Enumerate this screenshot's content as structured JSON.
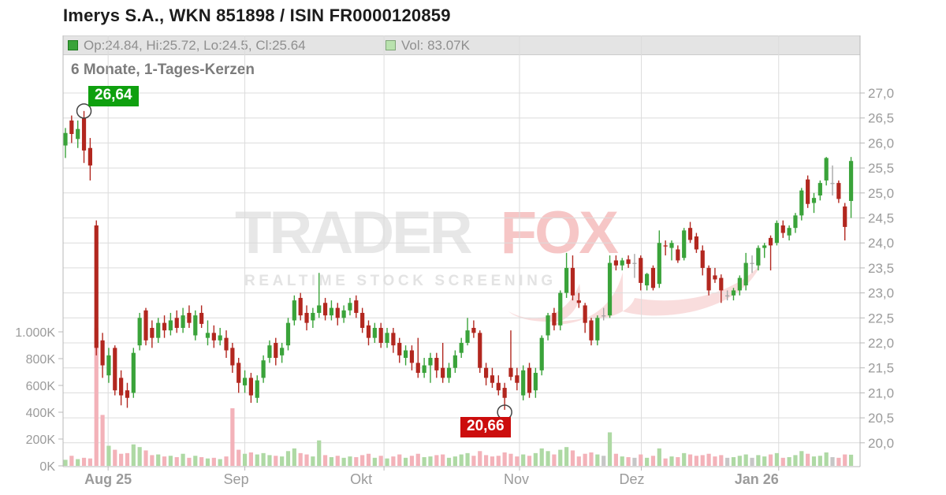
{
  "header": {
    "title": "Imerys S.A., WKN 851898 / ISIN FR0000120859"
  },
  "legend": {
    "ohlc_label": "Op:24.84, Hi:25.72, Lo:24.5, Cl:25.64",
    "vol_label": "Vol: 83.07K"
  },
  "subtitle": "6 Monate, 1-Tages-Kerzen",
  "annotations": {
    "high_label": "26,64",
    "low_label": "20,66"
  },
  "watermark": {
    "word1": "TRADER",
    "word2": "FOX",
    "tagline": "REALTIME STOCK SCREENING"
  },
  "colors": {
    "up": "#3aa33a",
    "down": "#b2271f",
    "neutral": "#a6a6a6",
    "vol_up": "#aed9a4",
    "vol_down": "#f3b2b9",
    "vol_neutral": "#c6c6c6",
    "grid": "#dcdcdc",
    "axis_line": "#b8b8b8",
    "axis_text": "#9b9b9b",
    "marker_ring": "#444444"
  },
  "chart_data": {
    "type": "candlestick",
    "title": "Imerys S.A., WKN 851898 / ISIN FR0000120859",
    "period": "6 Monate, 1-Tages-Kerzen",
    "price_axis": {
      "min": 20.0,
      "max": 27.0,
      "step": 0.5,
      "side": "right",
      "decimal": "comma"
    },
    "volume_axis": {
      "side": "left",
      "unit": "K",
      "ticks": [
        [
          1000,
          "1.000K"
        ],
        [
          800,
          "800K"
        ],
        [
          600,
          "600K"
        ],
        [
          400,
          "400K"
        ],
        [
          200,
          "200K"
        ],
        [
          0,
          "0K"
        ]
      ]
    },
    "months": [
      {
        "label": "Aug 25",
        "index": 6.9,
        "bold": true,
        "label_dx": 0
      },
      {
        "label": "Sep",
        "index": 29.0,
        "bold": false,
        "label_dx": -11
      },
      {
        "label": "Okt",
        "index": 51.5,
        "bold": false,
        "label_dx": -29
      },
      {
        "label": "Nov",
        "index": 73.4,
        "bold": false,
        "label_dx": -4
      },
      {
        "label": "Dez",
        "index": 93.1,
        "bold": false,
        "label_dx": -12
      },
      {
        "label": "Jan 26",
        "index": 115.3,
        "bold": true,
        "label_dx": -28
      }
    ],
    "marked_high": {
      "index": 3,
      "value": 26.64,
      "label": "26,64"
    },
    "marked_low": {
      "index": 71,
      "value": 20.66,
      "label": "20,66"
    },
    "last_candle": {
      "open": 24.84,
      "high": 25.72,
      "low": 24.5,
      "close": 25.64,
      "volume_k": 83.07
    },
    "candles_format": [
      "open",
      "high",
      "low",
      "close",
      "volume_k"
    ],
    "candles": [
      [
        25.95,
        26.3,
        25.7,
        26.2,
        45
      ],
      [
        26.45,
        26.55,
        26.0,
        26.18,
        75
      ],
      [
        26.08,
        26.45,
        25.9,
        26.28,
        50
      ],
      [
        26.5,
        26.64,
        25.6,
        25.85,
        60
      ],
      [
        25.9,
        26.1,
        25.25,
        25.55,
        55
      ],
      [
        24.35,
        24.45,
        21.75,
        21.9,
        1030
      ],
      [
        22.05,
        22.2,
        21.3,
        21.55,
        380
      ],
      [
        21.35,
        21.9,
        21.2,
        21.75,
        150
      ],
      [
        21.9,
        21.95,
        20.95,
        21.05,
        120
      ],
      [
        21.3,
        21.45,
        20.75,
        20.95,
        90
      ],
      [
        21.05,
        21.2,
        20.7,
        20.9,
        95
      ],
      [
        21.0,
        21.9,
        20.9,
        21.8,
        160
      ],
      [
        21.95,
        22.6,
        21.85,
        22.5,
        140
      ],
      [
        22.65,
        22.7,
        21.95,
        22.05,
        115
      ],
      [
        22.3,
        22.45,
        21.9,
        22.1,
        80
      ],
      [
        22.1,
        22.5,
        22.0,
        22.4,
        85
      ],
      [
        22.4,
        22.55,
        22.1,
        22.25,
        70
      ],
      [
        22.25,
        22.6,
        22.15,
        22.45,
        75
      ],
      [
        22.5,
        22.65,
        22.2,
        22.3,
        65
      ],
      [
        22.3,
        22.7,
        22.2,
        22.55,
        90
      ],
      [
        22.6,
        22.75,
        22.3,
        22.4,
        60
      ],
      [
        22.15,
        22.65,
        22.05,
        22.55,
        75
      ],
      [
        22.6,
        22.75,
        22.3,
        22.38,
        65
      ],
      [
        22.1,
        22.45,
        21.95,
        22.2,
        55
      ],
      [
        22.2,
        22.35,
        21.9,
        22.05,
        60
      ],
      [
        22.05,
        22.3,
        21.95,
        22.15,
        50
      ],
      [
        22.1,
        22.25,
        21.7,
        21.85,
        70
      ],
      [
        21.9,
        22.0,
        21.4,
        21.55,
        430
      ],
      [
        21.6,
        21.7,
        21.0,
        21.2,
        120
      ],
      [
        21.15,
        21.45,
        21.0,
        21.3,
        90
      ],
      [
        21.3,
        21.4,
        20.8,
        20.95,
        100
      ],
      [
        20.9,
        21.35,
        20.8,
        21.25,
        85
      ],
      [
        21.3,
        21.75,
        21.2,
        21.65,
        95
      ],
      [
        21.7,
        22.05,
        21.6,
        21.95,
        80
      ],
      [
        22.0,
        22.1,
        21.55,
        21.7,
        75
      ],
      [
        21.75,
        22.0,
        21.6,
        21.9,
        70
      ],
      [
        21.95,
        22.5,
        21.85,
        22.4,
        110
      ],
      [
        22.45,
        22.95,
        22.35,
        22.85,
        130
      ],
      [
        22.9,
        23.0,
        22.45,
        22.55,
        95
      ],
      [
        22.6,
        22.75,
        22.25,
        22.4,
        85
      ],
      [
        22.45,
        22.7,
        22.3,
        22.6,
        70
      ],
      [
        22.6,
        23.4,
        22.5,
        22.75,
        190
      ],
      [
        22.8,
        22.9,
        22.45,
        22.55,
        80
      ],
      [
        22.55,
        22.85,
        22.45,
        22.7,
        65
      ],
      [
        22.7,
        22.8,
        22.35,
        22.5,
        75
      ],
      [
        22.5,
        22.75,
        22.4,
        22.65,
        60
      ],
      [
        22.65,
        22.9,
        22.55,
        22.8,
        70
      ],
      [
        22.85,
        22.95,
        22.5,
        22.6,
        65
      ],
      [
        22.6,
        22.7,
        22.2,
        22.3,
        80
      ],
      [
        22.35,
        22.45,
        21.95,
        22.1,
        90
      ],
      [
        22.1,
        22.4,
        22.0,
        22.3,
        60
      ],
      [
        22.3,
        22.4,
        21.9,
        22.0,
        75
      ],
      [
        22.0,
        22.3,
        21.9,
        22.2,
        55
      ],
      [
        22.2,
        22.3,
        21.8,
        21.95,
        70
      ],
      [
        22.0,
        22.1,
        21.6,
        21.75,
        85
      ],
      [
        21.7,
        21.95,
        21.55,
        21.85,
        60
      ],
      [
        21.85,
        21.95,
        21.45,
        21.6,
        75
      ],
      [
        21.6,
        22.1,
        21.3,
        21.4,
        90
      ],
      [
        21.4,
        21.7,
        21.3,
        21.55,
        65
      ],
      [
        21.55,
        21.8,
        21.2,
        21.7,
        70
      ],
      [
        21.7,
        21.8,
        21.3,
        21.45,
        80
      ],
      [
        21.5,
        22.0,
        21.2,
        21.3,
        85
      ],
      [
        21.3,
        21.6,
        21.2,
        21.5,
        60
      ],
      [
        21.5,
        21.85,
        21.4,
        21.75,
        70
      ],
      [
        21.8,
        22.1,
        21.7,
        22.0,
        85
      ],
      [
        22.0,
        22.5,
        21.95,
        22.25,
        95
      ],
      [
        22.3,
        22.45,
        22.1,
        22.2,
        75
      ],
      [
        22.2,
        22.25,
        21.4,
        21.5,
        110
      ],
      [
        21.5,
        21.6,
        21.15,
        21.3,
        80
      ],
      [
        21.35,
        21.5,
        21.1,
        21.2,
        70
      ],
      [
        21.2,
        21.35,
        20.95,
        21.05,
        75
      ],
      [
        21.1,
        21.2,
        20.66,
        20.9,
        100
      ],
      [
        21.5,
        22.25,
        21.25,
        21.32,
        90
      ],
      [
        21.35,
        21.5,
        21.05,
        21.2,
        70
      ],
      [
        20.95,
        21.55,
        20.85,
        21.45,
        85
      ],
      [
        21.5,
        21.6,
        20.9,
        21.0,
        75
      ],
      [
        21.05,
        21.5,
        20.9,
        21.4,
        95
      ],
      [
        21.45,
        22.15,
        21.35,
        22.1,
        130
      ],
      [
        22.15,
        22.6,
        22.05,
        22.55,
        110
      ],
      [
        22.6,
        22.7,
        22.25,
        22.35,
        85
      ],
      [
        22.35,
        23.05,
        22.25,
        23.0,
        120
      ],
      [
        23.0,
        23.8,
        22.9,
        23.5,
        140
      ],
      [
        23.5,
        23.75,
        22.85,
        22.95,
        115
      ],
      [
        22.85,
        23.0,
        22.7,
        22.8,
        70
      ],
      [
        22.75,
        22.8,
        22.2,
        22.4,
        90
      ],
      [
        22.45,
        22.5,
        21.95,
        22.05,
        100
      ],
      [
        22.05,
        22.55,
        21.95,
        22.5,
        85
      ],
      [
        22.55,
        22.7,
        22.45,
        22.55,
        75
      ],
      [
        22.55,
        23.75,
        22.5,
        23.6,
        250
      ],
      [
        23.65,
        23.75,
        23.45,
        23.55,
        90
      ],
      [
        23.55,
        23.7,
        23.45,
        23.65,
        70
      ],
      [
        23.67,
        23.75,
        23.5,
        23.58,
        65
      ],
      [
        23.6,
        23.78,
        23.3,
        23.6,
        60
      ],
      [
        23.7,
        23.75,
        23.05,
        23.2,
        85
      ],
      [
        23.15,
        23.4,
        23.05,
        23.38,
        60
      ],
      [
        23.5,
        23.55,
        23.05,
        23.1,
        75
      ],
      [
        23.18,
        24.25,
        23.1,
        24.0,
        130
      ],
      [
        23.95,
        24.05,
        23.75,
        23.93,
        55
      ],
      [
        23.9,
        24.05,
        23.65,
        24.0,
        70
      ],
      [
        23.87,
        23.95,
        23.6,
        23.65,
        65
      ],
      [
        23.7,
        24.3,
        23.65,
        24.25,
        95
      ],
      [
        24.3,
        24.42,
        24.0,
        24.06,
        85
      ],
      [
        24.13,
        24.2,
        23.8,
        23.87,
        75
      ],
      [
        23.85,
        23.95,
        23.35,
        23.5,
        80
      ],
      [
        23.5,
        23.55,
        22.95,
        23.05,
        90
      ],
      [
        23.35,
        23.5,
        23.2,
        23.27,
        70
      ],
      [
        23.3,
        23.37,
        22.8,
        23.05,
        80
      ],
      [
        22.95,
        23.05,
        22.85,
        22.95,
        60
      ],
      [
        22.95,
        23.1,
        22.85,
        23.05,
        65
      ],
      [
        23.05,
        23.35,
        22.95,
        23.3,
        75
      ],
      [
        23.15,
        23.8,
        23.05,
        23.6,
        85
      ],
      [
        23.6,
        23.75,
        23.4,
        23.6,
        60
      ],
      [
        23.55,
        23.95,
        23.45,
        23.9,
        80
      ],
      [
        23.9,
        24.0,
        23.7,
        23.95,
        70
      ],
      [
        24.1,
        24.15,
        23.45,
        23.95,
        85
      ],
      [
        24.0,
        24.45,
        23.95,
        24.4,
        95
      ],
      [
        24.35,
        24.45,
        24.1,
        24.2,
        60
      ],
      [
        24.15,
        24.35,
        24.05,
        24.3,
        65
      ],
      [
        24.3,
        24.6,
        24.2,
        24.55,
        80
      ],
      [
        24.55,
        25.1,
        24.45,
        25.05,
        110
      ],
      [
        25.27,
        25.35,
        24.7,
        24.78,
        90
      ],
      [
        24.8,
        25.0,
        24.6,
        24.9,
        70
      ],
      [
        24.95,
        25.25,
        24.85,
        25.2,
        75
      ],
      [
        25.25,
        25.72,
        25.15,
        25.7,
        100
      ],
      [
        25.2,
        25.55,
        24.95,
        25.2,
        65
      ],
      [
        25.2,
        25.25,
        24.8,
        24.88,
        60
      ],
      [
        24.73,
        24.8,
        24.05,
        24.32,
        85
      ],
      [
        24.84,
        25.72,
        24.5,
        25.64,
        83.07
      ]
    ]
  }
}
